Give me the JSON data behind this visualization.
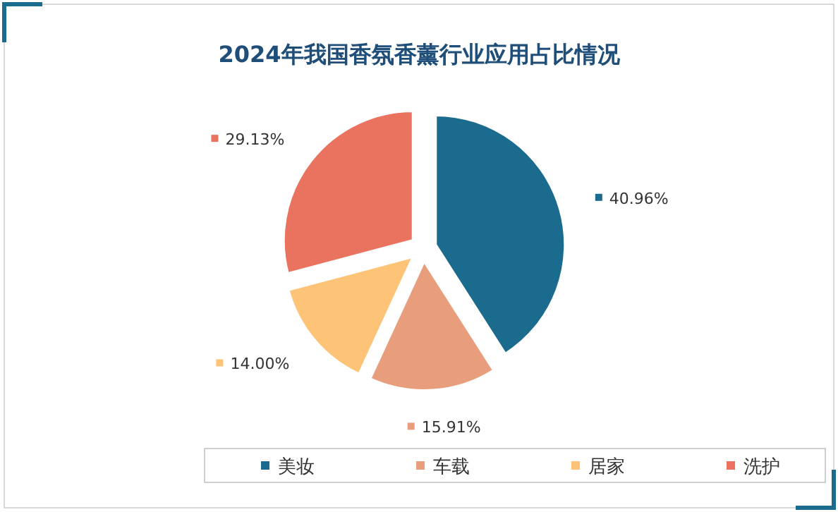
{
  "chart_data": {
    "type": "pie",
    "title": "2024年我国香氛香薰行业应用占比情况",
    "categories": [
      "美妆",
      "车载",
      "居家",
      "洗护"
    ],
    "values": [
      40.96,
      15.91,
      14.0,
      29.13
    ],
    "colors": [
      "#1b6b8f",
      "#e89e7c",
      "#fdc377",
      "#e9735f"
    ],
    "value_labels": [
      "40.96%",
      "15.91%",
      "14.00%",
      "29.13%"
    ],
    "legend": "bottom"
  }
}
